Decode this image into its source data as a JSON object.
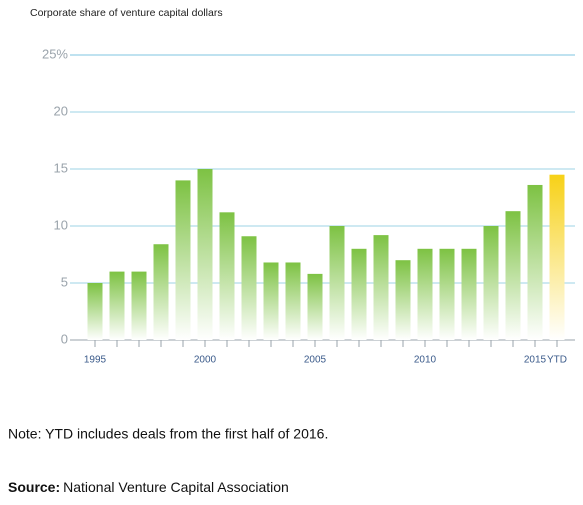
{
  "chart_data": {
    "type": "bar",
    "title": "Corporate share of venture capital dollars",
    "categories": [
      "1995",
      null,
      null,
      null,
      null,
      "2000",
      null,
      null,
      null,
      null,
      "2005",
      null,
      null,
      null,
      null,
      "2010",
      null,
      null,
      null,
      null,
      "2015",
      "YTD"
    ],
    "values": [
      5,
      6,
      6,
      8.4,
      14,
      15,
      11.2,
      9.1,
      6.8,
      6.8,
      5.8,
      10,
      8,
      9.2,
      7,
      8,
      8,
      8,
      10,
      11.3,
      13.6,
      14.5
    ],
    "colors": [
      "#7dc243",
      "#7dc243",
      "#7dc243",
      "#7dc243",
      "#7dc243",
      "#7dc243",
      "#7dc243",
      "#7dc243",
      "#7dc243",
      "#7dc243",
      "#7dc243",
      "#7dc243",
      "#7dc243",
      "#7dc243",
      "#7dc243",
      "#7dc243",
      "#7dc243",
      "#7dc243",
      "#7dc243",
      "#7dc243",
      "#7dc243",
      "#f7d117"
    ],
    "ylim": [
      0,
      25
    ],
    "yticks": [
      0,
      5,
      10,
      15,
      20,
      {
        "value": 25,
        "label": "25%"
      }
    ],
    "grid": true,
    "note": "Note: YTD includes deals from the first half of 2016.",
    "source_label": "Source:",
    "source": "National Venture Capital Association"
  }
}
